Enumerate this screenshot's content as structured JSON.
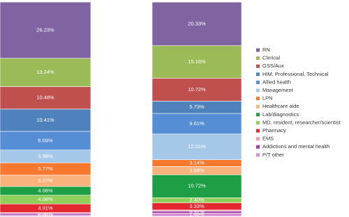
{
  "chart_data": {
    "type": "stacked_bar",
    "categories": [
      null,
      null
    ],
    "ylim": [
      0,
      100
    ],
    "series": [
      {
        "name": "RN",
        "color": "#8064a2",
        "values": [
          26.23,
          20.33
        ],
        "value_labels": [
          "26.23%",
          "20.33%"
        ]
      },
      {
        "name": "Clerical",
        "color": "#9bbb59",
        "values": [
          13.24,
          15.16
        ],
        "value_labels": [
          "13.24%",
          "15.16%"
        ]
      },
      {
        "name": "GSS/Aux",
        "color": "#c0504d",
        "values": [
          10.48,
          10.72
        ],
        "value_labels": [
          "10.48%",
          "10.72%"
        ]
      },
      {
        "name": "HIM, Professional, Technical",
        "color": "#4f81bd",
        "values": [
          10.41,
          5.73
        ],
        "value_labels": [
          "10.41%",
          "5.73%"
        ]
      },
      {
        "name": "Allied health",
        "color": "#558ed5",
        "values": [
          8.69,
          9.61
        ],
        "value_labels": [
          "8.69%",
          "9.61%"
        ]
      },
      {
        "name": "Management",
        "color": "#a6c8e8",
        "values": [
          5.98,
          12.01
        ],
        "value_labels": [
          "5.98%",
          "12.01%"
        ]
      },
      {
        "name": "LPN",
        "color": "#f7782f",
        "values": [
          5.77,
          3.14
        ],
        "value_labels": [
          "5.77%",
          "3.14%"
        ]
      },
      {
        "name": "Healthcare aide",
        "color": "#fab27c",
        "values": [
          5.27,
          3.88
        ],
        "value_labels": [
          "5.27%",
          "3.88%"
        ]
      },
      {
        "name": "Lab/diagnostics",
        "color": "#1e9e45",
        "values": [
          4.08,
          10.72
        ],
        "value_labels": [
          "4.08%",
          "10.72%"
        ]
      },
      {
        "name": "MD, resident, researcher/scientist",
        "color": "#8fcf5a",
        "values": [
          4.08,
          2.4
        ],
        "value_labels": [
          "4.08%",
          "2.40%"
        ]
      },
      {
        "name": "Pharmacy",
        "color": "#e4282f",
        "values": [
          4.01,
          3.33
        ],
        "value_labels": [
          "4.01%",
          "3.33%"
        ]
      },
      {
        "name": "EMS",
        "color": "#f49ab4",
        "values": [
          0.5,
          0.55
        ],
        "value_labels": [
          "0.50%",
          "0.55%"
        ]
      },
      {
        "name": "Addictions and mental health",
        "color": "#9b3fa8",
        "values": [
          0.66,
          0.92
        ],
        "value_labels": [
          "0.66%",
          "0.92%"
        ]
      },
      {
        "name": "P/T other",
        "color": "#d58fd0",
        "values": [
          0.6,
          1.48
        ],
        "value_labels": [
          "0.60%",
          "1.48%"
        ]
      }
    ]
  }
}
